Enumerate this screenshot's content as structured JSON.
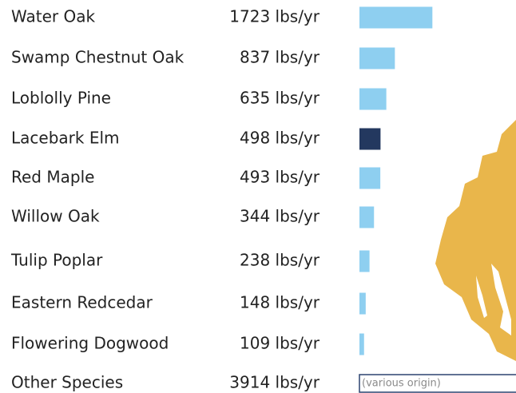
{
  "chart_data": {
    "type": "bar",
    "categories": [
      "Water Oak",
      "Swamp Chestnut Oak",
      "Loblolly Pine",
      "Lacebark Elm",
      "Red Maple",
      "Willow Oak",
      "Tulip Poplar",
      "Eastern Redcedar",
      "Flowering Dogwood",
      "Other Species"
    ],
    "values": [
      1723,
      837,
      635,
      498,
      493,
      344,
      238,
      148,
      109,
      3914
    ],
    "value_labels": [
      "1723 lbs/yr",
      "837 lbs/yr",
      "635 lbs/yr",
      "498 lbs/yr",
      "493 lbs/yr",
      "344 lbs/yr",
      "238 lbs/yr",
      "148 lbs/yr",
      "109 lbs/yr",
      "3914 lbs/yr"
    ],
    "colors": [
      "#8ecff0",
      "#8ecff0",
      "#8ecff0",
      "#23385f",
      "#8ecff0",
      "#8ecff0",
      "#8ecff0",
      "#8ecff0",
      "#8ecff0",
      "#2d4470"
    ],
    "note": "(various origin)"
  }
}
